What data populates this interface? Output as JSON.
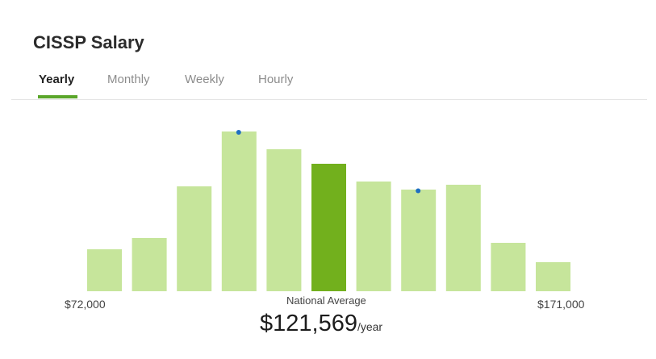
{
  "title": "CISSP Salary",
  "tabs": [
    {
      "label": "Yearly",
      "active": true
    },
    {
      "label": "Monthly",
      "active": false
    },
    {
      "label": "Weekly",
      "active": false
    },
    {
      "label": "Hourly",
      "active": false
    }
  ],
  "colors": {
    "bar": "#c6e59b",
    "highlight_bar": "#72b01d",
    "tab_underline": "#5aa62a",
    "marker": "#1f6fc1"
  },
  "chart_data": {
    "type": "bar",
    "categories": [
      1,
      2,
      3,
      4,
      5,
      6,
      7,
      8,
      9,
      10,
      11
    ],
    "values": [
      26,
      33,
      65,
      99,
      88,
      79,
      68,
      63,
      66,
      30,
      18
    ],
    "ylim": [
      0,
      100
    ],
    "highlight_index": 5,
    "marker_indices": [
      3,
      7
    ],
    "range_min_label": "$72,000",
    "range_max_label": "$171,000",
    "average_caption": "National Average",
    "average_value": "$121,569",
    "average_unit": "/year"
  }
}
